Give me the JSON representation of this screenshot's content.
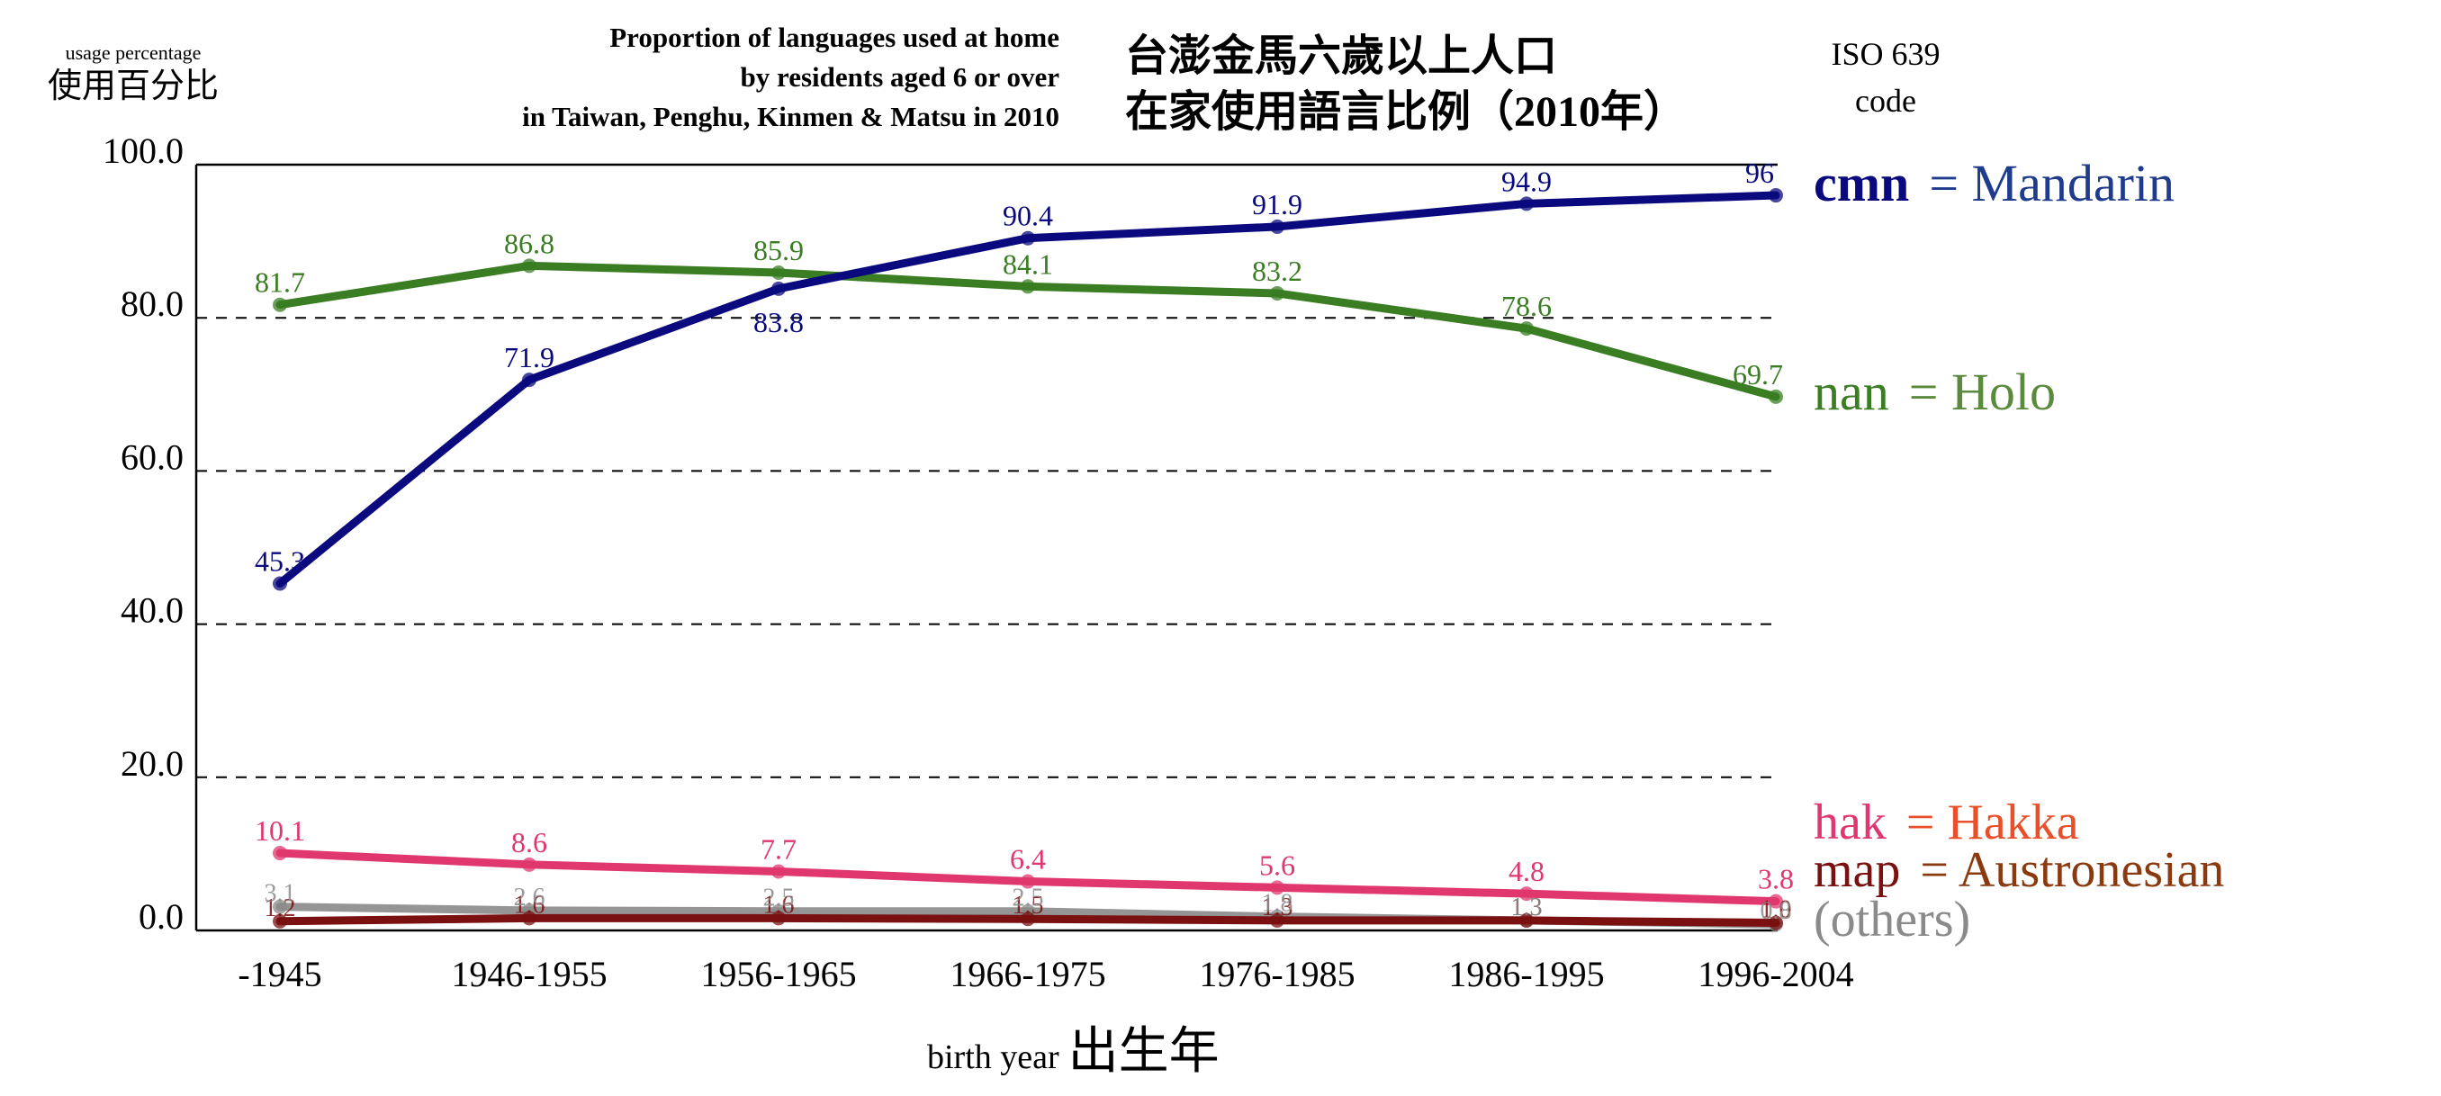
{
  "chart_data": {
    "type": "line",
    "title": "Proportion of languages used at home",
    "title_lines": [
      "Proportion of languages used at home",
      "by residents aged 6 or over",
      "in Taiwan, Penghu, Kinmen & Matsu in 2010"
    ],
    "title_zh_lines": [
      "台澎金馬六歲以上人口",
      "在家使用語言比例（2010年）"
    ],
    "ylabel": "usage percentage",
    "ylabel_zh": "使用百分比",
    "xlabel": "birth year",
    "xlabel_zh": "出生年",
    "legend_header": [
      "ISO 639",
      "code"
    ],
    "categories": [
      "-1945",
      "1946-1955",
      "1956-1965",
      "1966-1975",
      "1976-1985",
      "1986-1995",
      "1996-2004"
    ],
    "yticks": [
      "100.0",
      "80.0",
      "60.0",
      "40.0",
      "20.0",
      "0.0"
    ],
    "ylim": [
      0,
      100
    ],
    "grid": "dashed horizontal",
    "legend_placement": "right",
    "series": [
      {
        "code": "cmn",
        "name": "Mandarin",
        "color": "#0a0a7e",
        "legend_color": "#1f3b8c",
        "values": [
          45.3,
          71.9,
          83.8,
          90.4,
          91.9,
          94.9,
          96.0
        ],
        "labels": [
          "45.3",
          "71.9",
          "83.8",
          "90.4",
          "91.9",
          "94.9",
          "96"
        ]
      },
      {
        "code": "nan",
        "name": "Holo",
        "color": "#3a7d23",
        "legend_color": "#5a8a3c",
        "values": [
          81.7,
          86.8,
          85.9,
          84.1,
          83.2,
          78.6,
          69.7
        ],
        "labels": [
          "81.7",
          "86.8",
          "85.9",
          "84.1",
          "83.2",
          "78.6",
          "69.7"
        ]
      },
      {
        "code": "hak",
        "name": "Hakka",
        "color": "#e0386e",
        "legend_color": "#e8502c",
        "values": [
          10.1,
          8.6,
          7.7,
          6.4,
          5.6,
          4.8,
          3.8
        ],
        "labels": [
          "10.1",
          "8.6",
          "7.7",
          "6.4",
          "5.6",
          "4.8",
          "3.8"
        ]
      },
      {
        "code": "map",
        "name": "Austronesian",
        "color": "#7a1010",
        "legend_color": "#8b3a10",
        "values": [
          1.2,
          1.6,
          1.6,
          1.5,
          1.3,
          1.3,
          1.0
        ],
        "labels": [
          "1.2",
          "1.6",
          "1.6",
          "1.5",
          "1.3",
          "1.3",
          "1.0"
        ]
      },
      {
        "code": "",
        "name": "(others)",
        "color": "#8a8a8a",
        "legend_color": "#8a8a8a",
        "values": [
          3.1,
          2.6,
          2.5,
          2.5,
          1.8,
          1.3,
          0.8
        ],
        "labels": [
          "3.1",
          "2.6",
          "2.5",
          "2.5",
          "1.8",
          "1.3",
          "0.8"
        ]
      }
    ]
  }
}
